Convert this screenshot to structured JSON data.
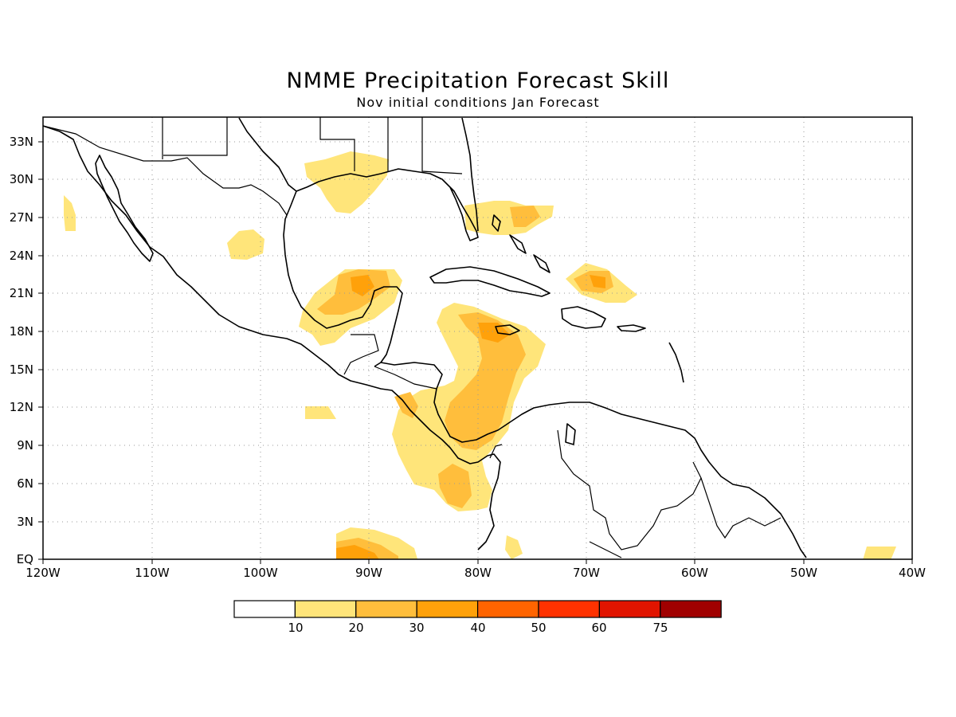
{
  "map": {
    "title": "NMME Precipitation Forecast Skill",
    "subtitle": "Nov initial conditions  Jan Forecast",
    "lon_ticks": [
      "120W",
      "110W",
      "100W",
      "90W",
      "80W",
      "70W",
      "60W",
      "50W",
      "40W"
    ],
    "lat_ticks": [
      "EQ",
      "3N",
      "6N",
      "9N",
      "12N",
      "15N",
      "18N",
      "21N",
      "24N",
      "27N",
      "30N",
      "33N"
    ],
    "grid": "dotted"
  },
  "legend": {
    "labels": [
      "10",
      "20",
      "30",
      "40",
      "50",
      "60",
      "75"
    ],
    "colors": [
      "#ffffff",
      "#ffe57a",
      "#ffbe3c",
      "#ffa10a",
      "#ff6400",
      "#ff3200",
      "#e11400",
      "#a00000"
    ]
  },
  "colors": {
    "level_10": "#ffe57a",
    "level_20": "#ffbe3c",
    "level_30": "#ffa10a"
  }
}
